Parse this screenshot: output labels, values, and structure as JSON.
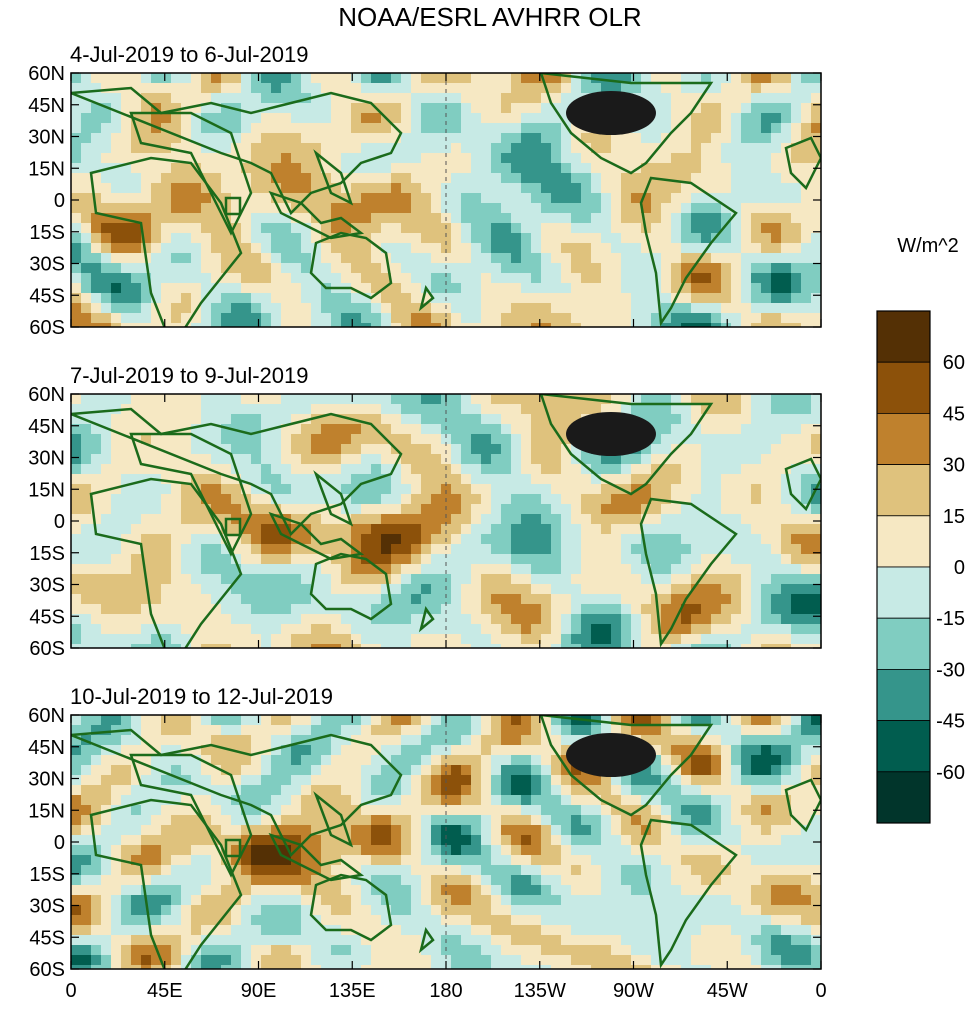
{
  "title": "NOAA/ESRL AVHRR OLR",
  "colors": {
    "land": "#1b6b1b",
    "dateline": "#555555",
    "bins": [
      "#01352b",
      "#015d4f",
      "#35958b",
      "#80cdc1",
      "#c7eae5",
      "#f6e8c3",
      "#dfc27d",
      "#bf812d",
      "#8c510a",
      "#543005"
    ]
  },
  "panels": [
    {
      "label": "4-Jul-2019 to 6-Jul-2019"
    },
    {
      "label": "7-Jul-2019 to 9-Jul-2019"
    },
    {
      "label": "10-Jul-2019 to 12-Jul-2019"
    }
  ],
  "lat_ticks": [
    "60N",
    "45N",
    "30N",
    "15N",
    "0",
    "15S",
    "30S",
    "45S",
    "60S"
  ],
  "lon_ticks": [
    "0",
    "45E",
    "90E",
    "135E",
    "180",
    "135W",
    "90W",
    "45W",
    "0"
  ],
  "colorbar": {
    "unit": "W/m^2",
    "labels": [
      "60",
      "45",
      "30",
      "15",
      "0",
      "-15",
      "-30",
      "-45",
      "-60"
    ]
  }
}
